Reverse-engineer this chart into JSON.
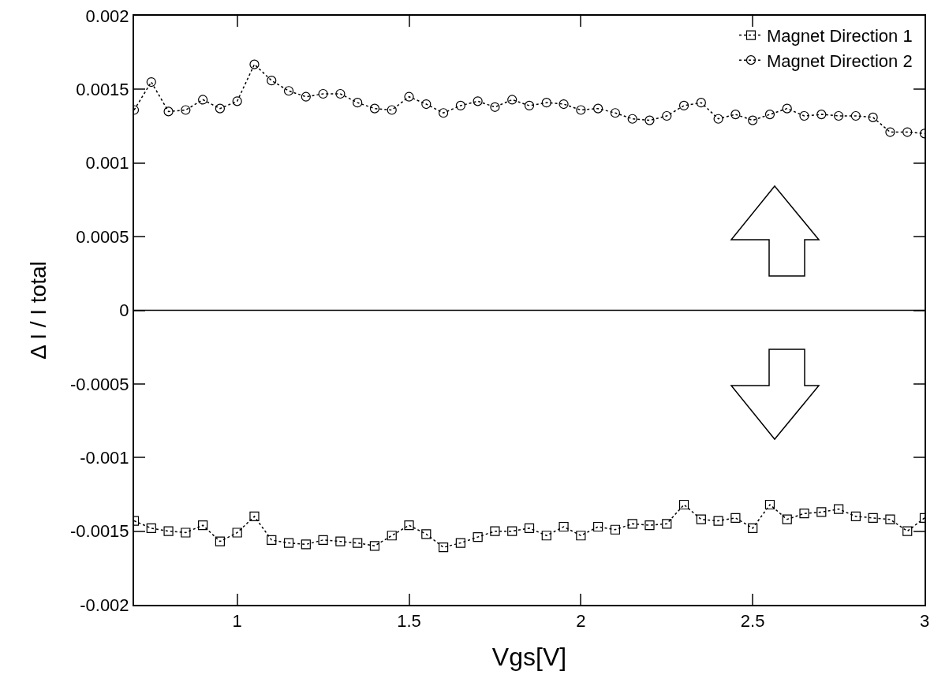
{
  "chart_data": {
    "type": "line",
    "xlabel": "Vgs[V]",
    "ylabel": "Δ I / I total",
    "x": [
      0.7,
      0.75,
      0.8,
      0.85,
      0.9,
      0.95,
      1.0,
      1.05,
      1.1,
      1.15,
      1.2,
      1.25,
      1.3,
      1.35,
      1.4,
      1.45,
      1.5,
      1.55,
      1.6,
      1.65,
      1.7,
      1.75,
      1.8,
      1.85,
      1.9,
      1.95,
      2.0,
      2.05,
      2.1,
      2.15,
      2.2,
      2.25,
      2.3,
      2.35,
      2.4,
      2.45,
      2.5,
      2.55,
      2.6,
      2.65,
      2.7,
      2.75,
      2.8,
      2.85,
      2.9,
      2.95,
      3.0
    ],
    "series": [
      {
        "name": "Magnet Direction 1",
        "color": "#000000",
        "marker": "square",
        "values": [
          -0.00143,
          -0.00148,
          -0.0015,
          -0.00151,
          -0.00146,
          -0.00157,
          -0.00151,
          -0.0014,
          -0.00156,
          -0.00158,
          -0.00159,
          -0.00156,
          -0.00157,
          -0.00158,
          -0.0016,
          -0.00153,
          -0.00146,
          -0.00152,
          -0.00161,
          -0.00158,
          -0.00154,
          -0.0015,
          -0.0015,
          -0.00148,
          -0.00153,
          -0.00147,
          -0.00153,
          -0.00147,
          -0.00149,
          -0.00145,
          -0.00146,
          -0.00145,
          -0.00132,
          -0.00142,
          -0.00143,
          -0.00141,
          -0.00148,
          -0.00132,
          -0.00142,
          -0.00138,
          -0.00137,
          -0.00135,
          -0.0014,
          -0.00141,
          -0.00142,
          -0.0015,
          -0.00141
        ]
      },
      {
        "name": "Magnet Direction 2",
        "color": "#000000",
        "marker": "circle",
        "values": [
          0.00136,
          0.00155,
          0.00135,
          0.00136,
          0.00143,
          0.00137,
          0.00142,
          0.00167,
          0.00156,
          0.00149,
          0.00145,
          0.00147,
          0.00147,
          0.00141,
          0.00137,
          0.00136,
          0.00145,
          0.0014,
          0.00134,
          0.00139,
          0.00142,
          0.00138,
          0.00143,
          0.00139,
          0.00141,
          0.0014,
          0.00136,
          0.00137,
          0.00134,
          0.0013,
          0.00129,
          0.00132,
          0.00139,
          0.00141,
          0.0013,
          0.00133,
          0.00129,
          0.00133,
          0.00137,
          0.00132,
          0.00133,
          0.00132,
          0.00132,
          0.00131,
          0.00121,
          0.00121,
          0.0012
        ]
      }
    ],
    "xlim": [
      0.7,
      3
    ],
    "xticks": [
      1,
      1.5,
      2,
      2.5,
      3
    ],
    "ylim": [
      -0.002,
      0.002
    ],
    "yticks": [
      -0.002,
      -0.0015,
      -0.001,
      -0.0005,
      0,
      0.0005,
      0.001,
      0.0015,
      0.002
    ],
    "ref_lines": [
      {
        "axis": "y",
        "value": 0,
        "color": "#000000",
        "line_style": "solid"
      }
    ],
    "line_style": "dotted",
    "grid": false,
    "legend": "top right"
  }
}
